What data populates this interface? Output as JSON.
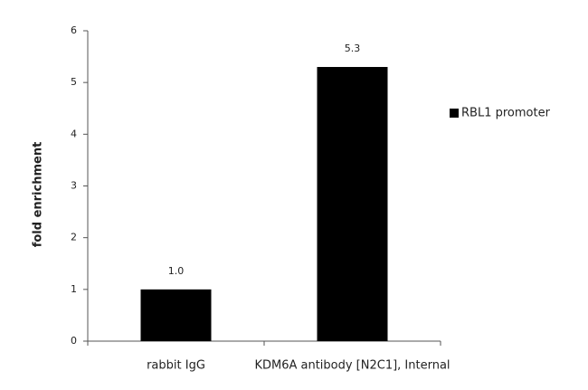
{
  "chart_data": {
    "type": "bar",
    "categories": [
      "rabbit IgG",
      "KDM6A antibody [N2C1], Internal"
    ],
    "series": [
      {
        "name": "RBL1 promoter",
        "color": "#000000",
        "values": [
          1,
          5.3
        ],
        "value_labels": [
          "1.0",
          "5.3"
        ]
      }
    ],
    "y_label": "fold enrichment",
    "ylim": [
      0,
      6
    ],
    "yticks": [
      0,
      1,
      2,
      3,
      4,
      5,
      6
    ],
    "grid": false,
    "legend": "right"
  }
}
